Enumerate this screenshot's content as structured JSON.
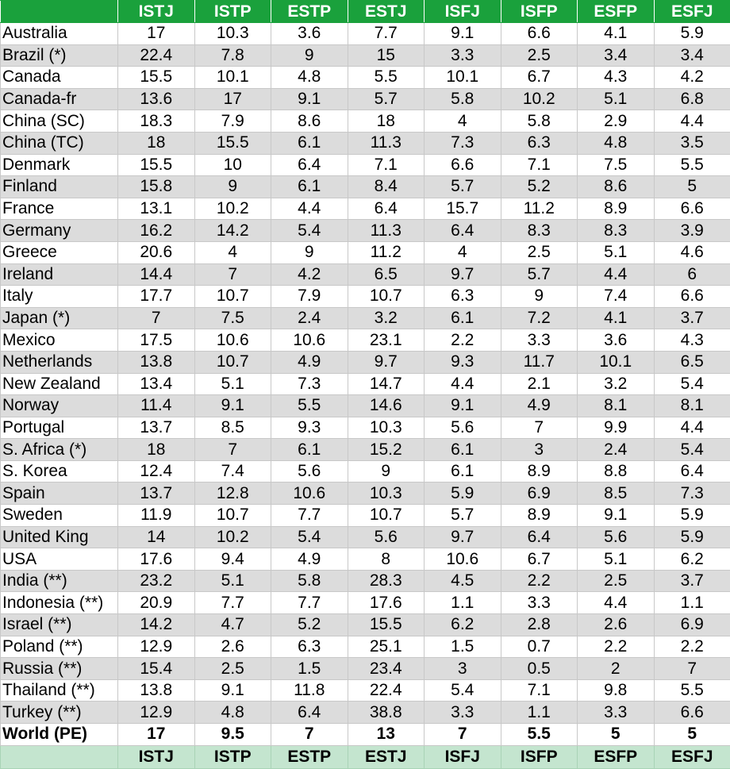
{
  "columns": [
    "ISTJ",
    "ISTP",
    "ESTP",
    "ESTJ",
    "ISFJ",
    "ISFP",
    "ESFP",
    "ESFJ"
  ],
  "rows": [
    {
      "country": "Australia",
      "values": [
        "17",
        "10.3",
        "3.6",
        "7.7",
        "9.1",
        "6.6",
        "4.1",
        "5.9"
      ]
    },
    {
      "country": "Brazil (*)",
      "values": [
        "22.4",
        "7.8",
        "9",
        "15",
        "3.3",
        "2.5",
        "3.4",
        "3.4"
      ]
    },
    {
      "country": "Canada",
      "values": [
        "15.5",
        "10.1",
        "4.8",
        "5.5",
        "10.1",
        "6.7",
        "4.3",
        "4.2"
      ]
    },
    {
      "country": "Canada-fr",
      "values": [
        "13.6",
        "17",
        "9.1",
        "5.7",
        "5.8",
        "10.2",
        "5.1",
        "6.8"
      ]
    },
    {
      "country": "China (SC)",
      "values": [
        "18.3",
        "7.9",
        "8.6",
        "18",
        "4",
        "5.8",
        "2.9",
        "4.4"
      ]
    },
    {
      "country": "China (TC)",
      "values": [
        "18",
        "15.5",
        "6.1",
        "11.3",
        "7.3",
        "6.3",
        "4.8",
        "3.5"
      ]
    },
    {
      "country": "Denmark",
      "values": [
        "15.5",
        "10",
        "6.4",
        "7.1",
        "6.6",
        "7.1",
        "7.5",
        "5.5"
      ]
    },
    {
      "country": "Finland",
      "values": [
        "15.8",
        "9",
        "6.1",
        "8.4",
        "5.7",
        "5.2",
        "8.6",
        "5"
      ]
    },
    {
      "country": "France",
      "values": [
        "13.1",
        "10.2",
        "4.4",
        "6.4",
        "15.7",
        "11.2",
        "8.9",
        "6.6"
      ]
    },
    {
      "country": "Germany",
      "values": [
        "16.2",
        "14.2",
        "5.4",
        "11.3",
        "6.4",
        "8.3",
        "8.3",
        "3.9"
      ]
    },
    {
      "country": "Greece",
      "values": [
        "20.6",
        "4",
        "9",
        "11.2",
        "4",
        "2.5",
        "5.1",
        "4.6"
      ]
    },
    {
      "country": "Ireland",
      "values": [
        "14.4",
        "7",
        "4.2",
        "6.5",
        "9.7",
        "5.7",
        "4.4",
        "6"
      ]
    },
    {
      "country": "Italy",
      "values": [
        "17.7",
        "10.7",
        "7.9",
        "10.7",
        "6.3",
        "9",
        "7.4",
        "6.6"
      ]
    },
    {
      "country": "Japan (*)",
      "values": [
        "7",
        "7.5",
        "2.4",
        "3.2",
        "6.1",
        "7.2",
        "4.1",
        "3.7"
      ]
    },
    {
      "country": "Mexico",
      "values": [
        "17.5",
        "10.6",
        "10.6",
        "23.1",
        "2.2",
        "3.3",
        "3.6",
        "4.3"
      ]
    },
    {
      "country": "Netherlands",
      "values": [
        "13.8",
        "10.7",
        "4.9",
        "9.7",
        "9.3",
        "11.7",
        "10.1",
        "6.5"
      ]
    },
    {
      "country": "New Zealand",
      "values": [
        "13.4",
        "5.1",
        "7.3",
        "14.7",
        "4.4",
        "2.1",
        "3.2",
        "5.4"
      ]
    },
    {
      "country": "Norway",
      "values": [
        "11.4",
        "9.1",
        "5.5",
        "14.6",
        "9.1",
        "4.9",
        "8.1",
        "8.1"
      ]
    },
    {
      "country": "Portugal",
      "values": [
        "13.7",
        "8.5",
        "9.3",
        "10.3",
        "5.6",
        "7",
        "9.9",
        "4.4"
      ]
    },
    {
      "country": "S. Africa (*)",
      "values": [
        "18",
        "7",
        "6.1",
        "15.2",
        "6.1",
        "3",
        "2.4",
        "5.4"
      ]
    },
    {
      "country": "S. Korea",
      "values": [
        "12.4",
        "7.4",
        "5.6",
        "9",
        "6.1",
        "8.9",
        "8.8",
        "6.4"
      ]
    },
    {
      "country": "Spain",
      "values": [
        "13.7",
        "12.8",
        "10.6",
        "10.3",
        "5.9",
        "6.9",
        "8.5",
        "7.3"
      ]
    },
    {
      "country": "Sweden",
      "values": [
        "11.9",
        "10.7",
        "7.7",
        "10.7",
        "5.7",
        "8.9",
        "9.1",
        "5.9"
      ]
    },
    {
      "country": "United King",
      "values": [
        "14",
        "10.2",
        "5.4",
        "5.6",
        "9.7",
        "6.4",
        "5.6",
        "5.9"
      ]
    },
    {
      "country": "USA",
      "values": [
        "17.6",
        "9.4",
        "4.9",
        "8",
        "10.6",
        "6.7",
        "5.1",
        "6.2"
      ]
    },
    {
      "country": "India (**)",
      "values": [
        "23.2",
        "5.1",
        "5.8",
        "28.3",
        "4.5",
        "2.2",
        "2.5",
        "3.7"
      ]
    },
    {
      "country": "Indonesia (**)",
      "values": [
        "20.9",
        "7.7",
        "7.7",
        "17.6",
        "1.1",
        "3.3",
        "4.4",
        "1.1"
      ]
    },
    {
      "country": "Israel (**)",
      "values": [
        "14.2",
        "4.7",
        "5.2",
        "15.5",
        "6.2",
        "2.8",
        "2.6",
        "6.9"
      ]
    },
    {
      "country": "Poland (**)",
      "values": [
        "12.9",
        "2.6",
        "6.3",
        "25.1",
        "1.5",
        "0.7",
        "2.2",
        "2.2"
      ]
    },
    {
      "country": "Russia (**)",
      "values": [
        "15.4",
        "2.5",
        "1.5",
        "23.4",
        "3",
        "0.5",
        "2",
        "7"
      ]
    },
    {
      "country": "Thailand (**)",
      "values": [
        "13.8",
        "9.1",
        "11.8",
        "22.4",
        "5.4",
        "7.1",
        "9.8",
        "5.5"
      ]
    },
    {
      "country": "Turkey (**)",
      "values": [
        "12.9",
        "4.8",
        "6.4",
        "38.8",
        "3.3",
        "1.1",
        "3.3",
        "6.6"
      ]
    }
  ],
  "world": {
    "country": "World (PE)",
    "values": [
      "17",
      "9.5",
      "7",
      "13",
      "7",
      "5.5",
      "5",
      "5"
    ]
  },
  "colors": {
    "header_bg": "#1aa13c",
    "footer_bg": "#c4e5cf",
    "alt_row_bg": "#dcdcdc"
  }
}
